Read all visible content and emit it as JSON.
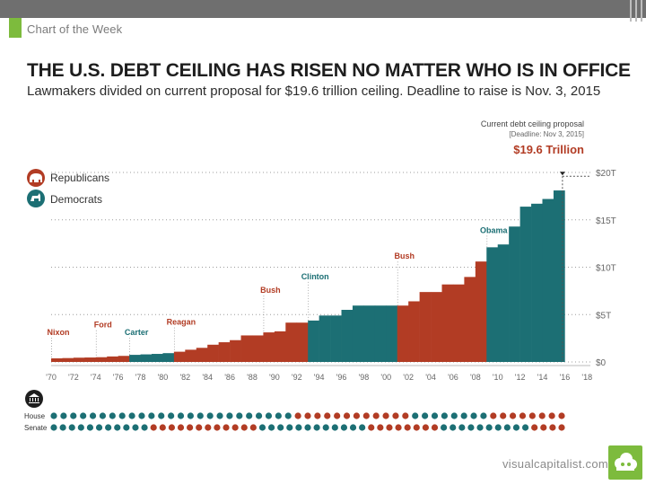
{
  "header": {
    "brand_label": "Chart of the Week",
    "headline": "THE U.S. DEBT CEILING HAS RISEN NO MATTER WHO IS IN OFFICE",
    "subhead": "Lawmakers divided on current proposal for $19.6 trillion ceiling. Deadline to raise is Nov. 3, 2015"
  },
  "footer": {
    "source": "visualcapitalist.com"
  },
  "colors": {
    "republican": "#b23c24",
    "democrat": "#1c6f74",
    "background": "#ffffff",
    "grid": "#9c9c9c",
    "brand_green": "#7dbb3d"
  },
  "chart_data": {
    "type": "bar",
    "title": "THE U.S. DEBT CEILING HAS RISEN NO MATTER WHO IS IN OFFICE",
    "ylabel": "",
    "xlabel": "",
    "ylim": [
      0,
      20
    ],
    "y_ticks": [
      "$0",
      "$5T",
      "$10T",
      "$15T",
      "$20T"
    ],
    "x_ticks": [
      "'70",
      "'72",
      "'74",
      "'76",
      "'78",
      "'80",
      "'82",
      "'84",
      "'86",
      "'88",
      "'90",
      "'92",
      "'94",
      "'96",
      "'98",
      "'00",
      "'02",
      "'04",
      "'06",
      "'08",
      "'10",
      "'12",
      "'14",
      "'16",
      "'18"
    ],
    "legend": {
      "position": "top-left",
      "entries": [
        {
          "name": "Republicans",
          "party": "R"
        },
        {
          "name": "Democrats",
          "party": "D"
        }
      ]
    },
    "series": [
      {
        "name": "Republicans",
        "party": "R",
        "points": [
          [
            1970,
            0.38
          ],
          [
            1971,
            0.41
          ],
          [
            1972,
            0.45
          ],
          [
            1973,
            0.47
          ],
          [
            1974,
            0.5
          ],
          [
            1975,
            0.58
          ],
          [
            1976,
            0.64
          ],
          [
            1977,
            0.7
          ]
        ]
      },
      {
        "name": "Democrats",
        "party": "D",
        "points": [
          [
            1977,
            0.75
          ],
          [
            1978,
            0.8
          ],
          [
            1979,
            0.85
          ],
          [
            1980,
            0.93
          ]
        ]
      },
      {
        "name": "Republicans",
        "party": "R",
        "points": [
          [
            1981,
            1.08
          ],
          [
            1982,
            1.29
          ],
          [
            1983,
            1.49
          ],
          [
            1984,
            1.82
          ],
          [
            1985,
            2.08
          ],
          [
            1986,
            2.3
          ],
          [
            1987,
            2.8
          ],
          [
            1988,
            2.8
          ],
          [
            1989,
            3.12
          ],
          [
            1990,
            3.23
          ],
          [
            1991,
            4.15
          ],
          [
            1992,
            4.15
          ]
        ]
      },
      {
        "name": "Democrats",
        "party": "D",
        "points": [
          [
            1993,
            4.37
          ],
          [
            1994,
            4.9
          ],
          [
            1995,
            4.9
          ],
          [
            1996,
            5.5
          ],
          [
            1997,
            5.95
          ],
          [
            1998,
            5.95
          ],
          [
            1999,
            5.95
          ],
          [
            2000,
            5.95
          ]
        ]
      },
      {
        "name": "Republicans",
        "party": "R",
        "points": [
          [
            2001,
            5.95
          ],
          [
            2002,
            6.4
          ],
          [
            2003,
            7.38
          ],
          [
            2004,
            7.38
          ],
          [
            2005,
            8.18
          ],
          [
            2006,
            8.18
          ],
          [
            2007,
            8.97
          ],
          [
            2008,
            10.6
          ]
        ]
      },
      {
        "name": "Democrats",
        "party": "D",
        "points": [
          [
            2009,
            12.1
          ],
          [
            2010,
            12.4
          ],
          [
            2011,
            14.29
          ],
          [
            2012,
            16.39
          ],
          [
            2013,
            16.7
          ],
          [
            2014,
            17.2
          ],
          [
            2015,
            18.1
          ]
        ]
      }
    ],
    "annotations": [
      {
        "label": "Nixon",
        "year": 1970,
        "party": "R"
      },
      {
        "label": "Ford",
        "year": 1974,
        "party": "R"
      },
      {
        "label": "Carter",
        "year": 1977,
        "party": "D"
      },
      {
        "label": "Reagan",
        "year": 1981,
        "party": "R"
      },
      {
        "label": "Bush",
        "year": 1989,
        "party": "R"
      },
      {
        "label": "Clinton",
        "year": 1993,
        "party": "D"
      },
      {
        "label": "Bush",
        "year": 2001,
        "party": "R"
      },
      {
        "label": "Obama",
        "year": 2009,
        "party": "D"
      }
    ],
    "callout": {
      "label": "Current debt ceiling proposal",
      "note": "[Deadline: Nov 3, 2015]",
      "value_label": "$19.6 Trillion",
      "year": 2015.8,
      "value": 19.6
    },
    "congress_rows": [
      {
        "label": "House",
        "parties": [
          "D",
          "D",
          "D",
          "D",
          "D",
          "D",
          "D",
          "D",
          "D",
          "D",
          "D",
          "D",
          "D",
          "D",
          "D",
          "D",
          "D",
          "D",
          "D",
          "D",
          "D",
          "D",
          "D",
          "D",
          "D",
          "R",
          "R",
          "R",
          "R",
          "R",
          "R",
          "R",
          "R",
          "R",
          "R",
          "R",
          "R",
          "D",
          "D",
          "D",
          "D",
          "D",
          "D",
          "D",
          "D",
          "R",
          "R",
          "R",
          "R",
          "R",
          "R",
          "R",
          "R"
        ]
      },
      {
        "label": "Senate",
        "parties": [
          "D",
          "D",
          "D",
          "D",
          "D",
          "D",
          "D",
          "D",
          "D",
          "D",
          "D",
          "R",
          "R",
          "R",
          "R",
          "R",
          "R",
          "R",
          "R",
          "R",
          "R",
          "R",
          "R",
          "D",
          "D",
          "D",
          "D",
          "D",
          "D",
          "D",
          "D",
          "D",
          "D",
          "D",
          "D",
          "R",
          "R",
          "R",
          "R",
          "R",
          "R",
          "R",
          "R",
          "D",
          "D",
          "D",
          "D",
          "D",
          "D",
          "D",
          "D",
          "D",
          "D",
          "R",
          "R",
          "R",
          "R"
        ]
      }
    ]
  }
}
